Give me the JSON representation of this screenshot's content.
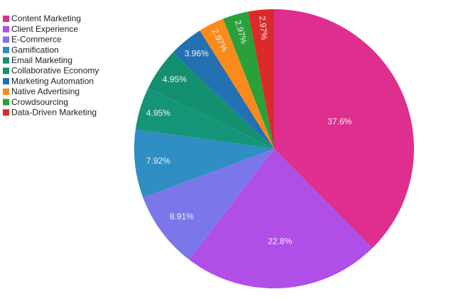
{
  "chart_data": {
    "type": "pie",
    "categories": [
      "Content Marketing",
      "Client Experience",
      "E-Commerce",
      "Gamification",
      "Email Marketing",
      "Collaborative Economy",
      "Marketing Automation",
      "Native Advertising",
      "Crowdsourcing",
      "Data-Driven Marketing"
    ],
    "values": [
      37.6,
      22.8,
      8.91,
      7.92,
      4.95,
      4.95,
      3.96,
      2.97,
      2.97,
      2.97
    ],
    "value_labels": [
      "37.6%",
      "22.8%",
      "8.91%",
      "7.92%",
      "4.95%",
      "4.95%",
      "3.96%",
      "2.97%",
      "2.97%",
      "2.97%"
    ],
    "colors": [
      "#de2f8f",
      "#b04ee8",
      "#7b77ea",
      "#2f8ec3",
      "#159578",
      "#13906f",
      "#2370b3",
      "#fb8a1c",
      "#2aa03b",
      "#db2a2a"
    ],
    "legend": "top-left"
  }
}
